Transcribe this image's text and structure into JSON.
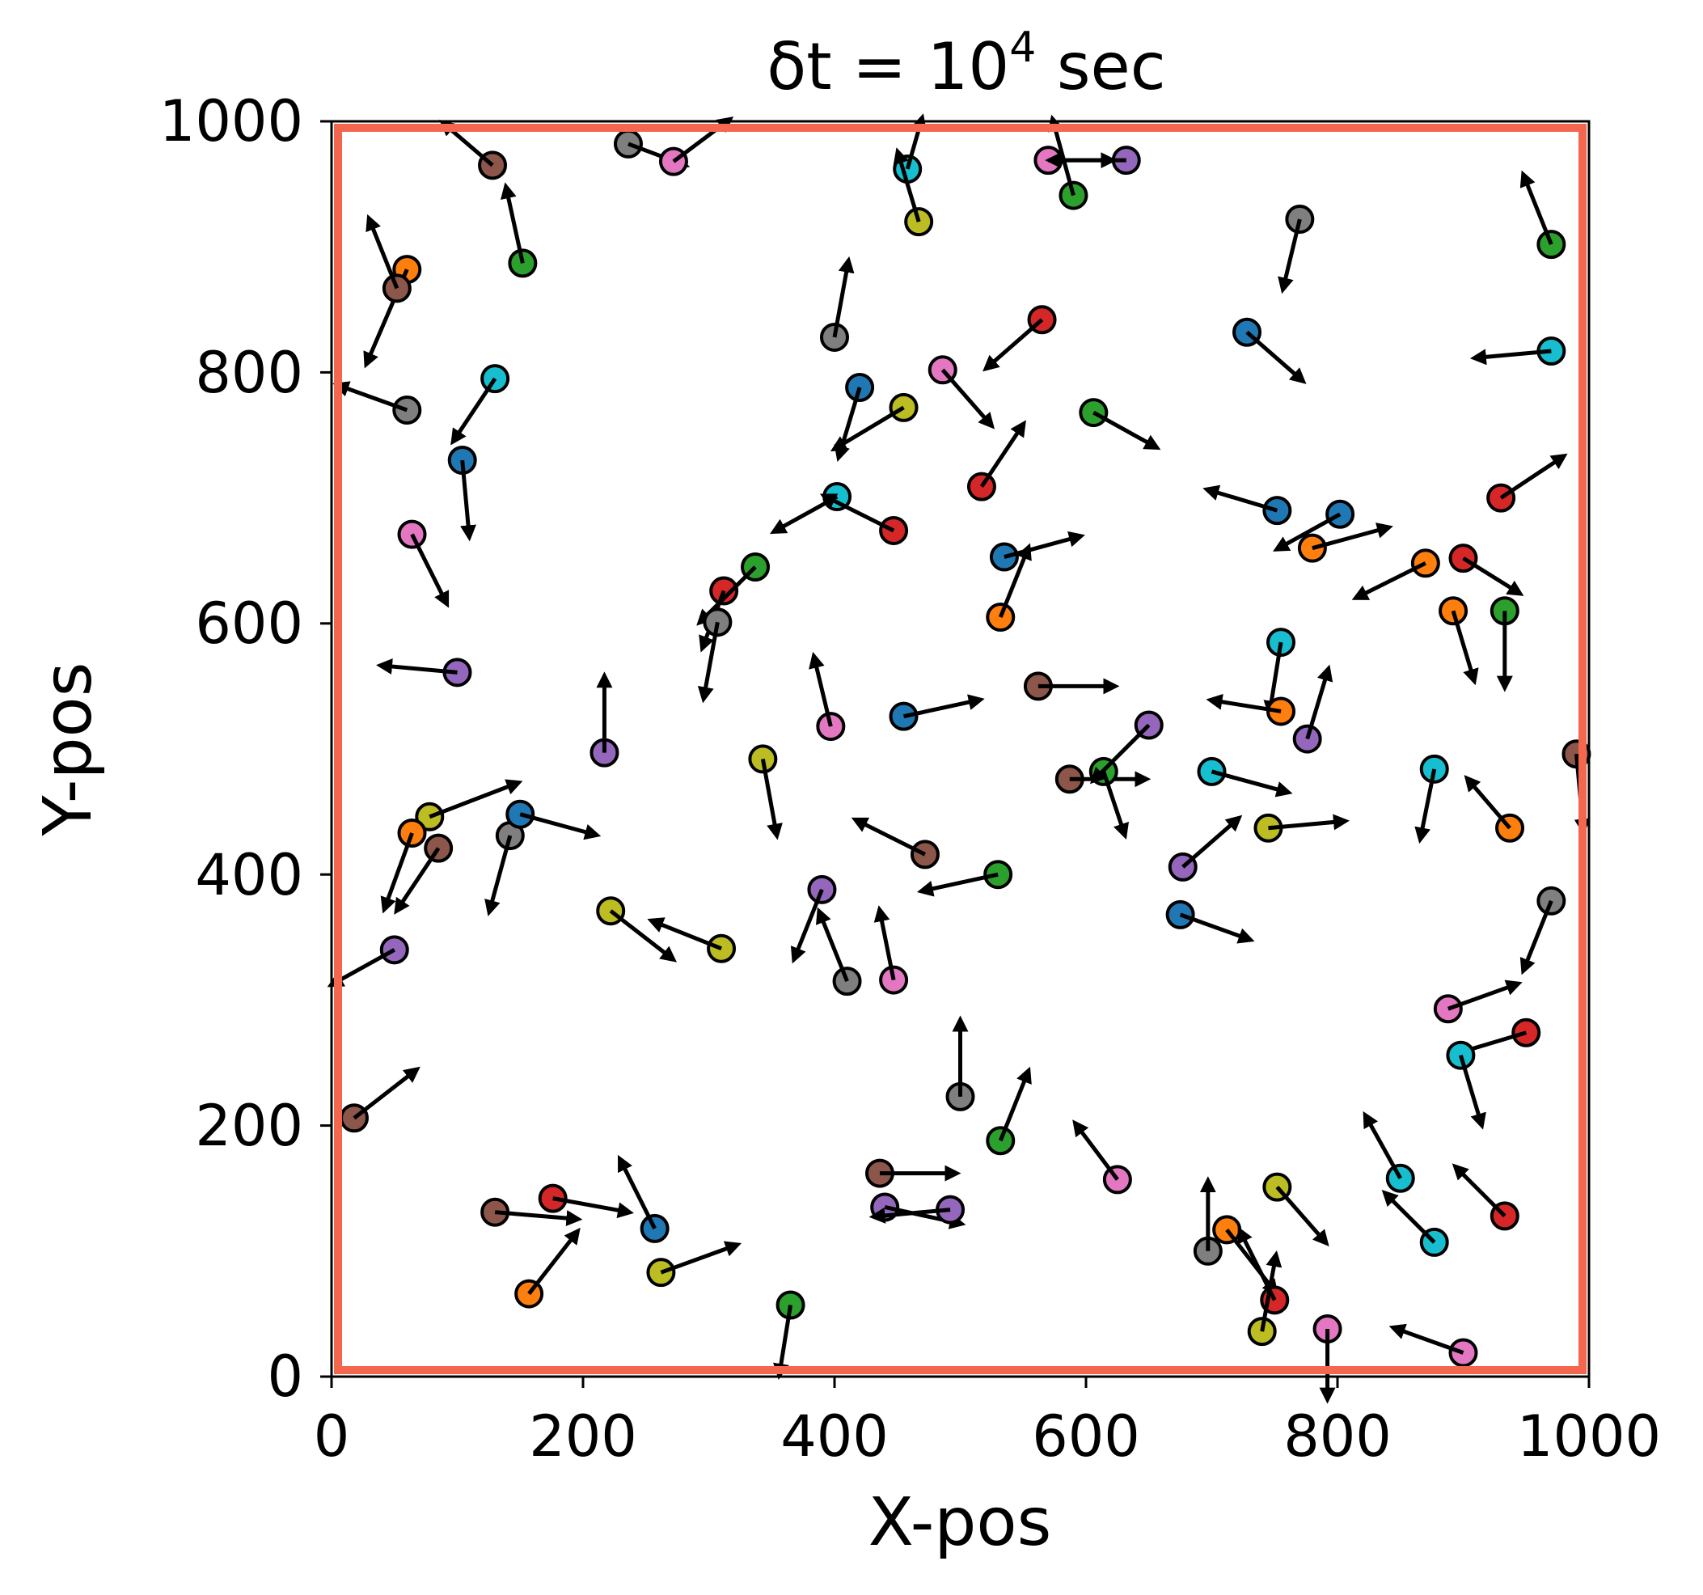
{
  "chart_data": {
    "type": "scatter",
    "title_main": "δt = 10",
    "title_exp": "4",
    "title_unit": " sec",
    "xlabel": "X-pos",
    "ylabel": "Y-pos",
    "xlim": [
      0,
      1000
    ],
    "ylim": [
      0,
      1000
    ],
    "xticks": [
      "0",
      "200",
      "400",
      "600",
      "800",
      "1000"
    ],
    "yticks": [
      "0",
      "200",
      "400",
      "600",
      "800",
      "1000"
    ],
    "grid": false,
    "boundary_color": "#f4674f",
    "arrow_color": "#000000",
    "colors": {
      "blue": "#1f77b4",
      "orange": "#ff7f0e",
      "green": "#2ca02c",
      "red": "#d62728",
      "purple": "#9467bd",
      "brown": "#8c564b",
      "pink": "#e377c2",
      "gray": "#7f7f7f",
      "olive": "#bcbd22",
      "cyan": "#17becf"
    },
    "particles": [
      {
        "x": 128,
        "y": 965,
        "c": "brown",
        "dx": -35,
        "dy": 30
      },
      {
        "x": 236,
        "y": 982,
        "c": "gray",
        "dx": 40,
        "dy": -15
      },
      {
        "x": 272,
        "y": 968,
        "c": "pink",
        "dx": 40,
        "dy": 30
      },
      {
        "x": 152,
        "y": 887,
        "c": "green",
        "dx": -12,
        "dy": 55
      },
      {
        "x": 60,
        "y": 882,
        "c": "orange",
        "dx": -30,
        "dy": -70
      },
      {
        "x": 52,
        "y": 867,
        "c": "brown",
        "dx": -20,
        "dy": 50
      },
      {
        "x": 60,
        "y": 770,
        "c": "gray",
        "dx": -50,
        "dy": 18
      },
      {
        "x": 130,
        "y": 795,
        "c": "cyan",
        "dx": -30,
        "dy": -45
      },
      {
        "x": 104,
        "y": 730,
        "c": "blue",
        "dx": 5,
        "dy": -55
      },
      {
        "x": 64,
        "y": 671,
        "c": "pink",
        "dx": 25,
        "dy": -50
      },
      {
        "x": 100,
        "y": 561,
        "c": "purple",
        "dx": -55,
        "dy": 5
      },
      {
        "x": 217,
        "y": 497,
        "c": "purple",
        "dx": 0,
        "dy": 55
      },
      {
        "x": 78,
        "y": 446,
        "c": "olive",
        "dx": 65,
        "dy": 25
      },
      {
        "x": 64,
        "y": 433,
        "c": "orange",
        "dx": -20,
        "dy": -55
      },
      {
        "x": 85,
        "y": 421,
        "c": "brown",
        "dx": -30,
        "dy": -45
      },
      {
        "x": 142,
        "y": 431,
        "c": "gray",
        "dx": -15,
        "dy": -55
      },
      {
        "x": 150,
        "y": 448,
        "c": "blue",
        "dx": 55,
        "dy": -15
      },
      {
        "x": 50,
        "y": 340,
        "c": "purple",
        "dx": -45,
        "dy": -25
      },
      {
        "x": 18,
        "y": 206,
        "c": "brown",
        "dx": 45,
        "dy": 35
      },
      {
        "x": 222,
        "y": 371,
        "c": "olive",
        "dx": 45,
        "dy": -35
      },
      {
        "x": 310,
        "y": 341,
        "c": "olive",
        "dx": -50,
        "dy": 20
      },
      {
        "x": 130,
        "y": 131,
        "c": "brown",
        "dx": 60,
        "dy": -5
      },
      {
        "x": 176,
        "y": 142,
        "c": "red",
        "dx": 55,
        "dy": -10
      },
      {
        "x": 257,
        "y": 118,
        "c": "blue",
        "dx": -25,
        "dy": 50
      },
      {
        "x": 157,
        "y": 66,
        "c": "orange",
        "dx": 35,
        "dy": 45
      },
      {
        "x": 262,
        "y": 83,
        "c": "olive",
        "dx": 55,
        "dy": 20
      },
      {
        "x": 365,
        "y": 57,
        "c": "green",
        "dx": -8,
        "dy": -50
      },
      {
        "x": 312,
        "y": 626,
        "c": "red",
        "dx": -15,
        "dy": -40
      },
      {
        "x": 337,
        "y": 645,
        "c": "green",
        "dx": -40,
        "dy": -40
      },
      {
        "x": 307,
        "y": 601,
        "c": "gray",
        "dx": -10,
        "dy": -55
      },
      {
        "x": 343,
        "y": 492,
        "c": "olive",
        "dx": 10,
        "dy": -55
      },
      {
        "x": 400,
        "y": 828,
        "c": "gray",
        "dx": 10,
        "dy": 55
      },
      {
        "x": 420,
        "y": 788,
        "c": "blue",
        "dx": -15,
        "dy": -50
      },
      {
        "x": 455,
        "y": 772,
        "c": "olive",
        "dx": -50,
        "dy": -30
      },
      {
        "x": 402,
        "y": 701,
        "c": "cyan",
        "dx": -45,
        "dy": -25
      },
      {
        "x": 447,
        "y": 674,
        "c": "red",
        "dx": -50,
        "dy": 25
      },
      {
        "x": 458,
        "y": 962,
        "c": "cyan",
        "dx": 10,
        "dy": 35
      },
      {
        "x": 467,
        "y": 920,
        "c": "olive",
        "dx": -15,
        "dy": 50
      },
      {
        "x": 486,
        "y": 802,
        "c": "pink",
        "dx": 35,
        "dy": -40
      },
      {
        "x": 565,
        "y": 842,
        "c": "red",
        "dx": -40,
        "dy": -35
      },
      {
        "x": 517,
        "y": 709,
        "c": "red",
        "dx": 30,
        "dy": 45
      },
      {
        "x": 535,
        "y": 653,
        "c": "blue",
        "dx": 55,
        "dy": 15
      },
      {
        "x": 532,
        "y": 605,
        "c": "orange",
        "dx": 20,
        "dy": 50
      },
      {
        "x": 397,
        "y": 518,
        "c": "pink",
        "dx": -12,
        "dy": 50
      },
      {
        "x": 455,
        "y": 526,
        "c": "blue",
        "dx": 55,
        "dy": 12
      },
      {
        "x": 390,
        "y": 388,
        "c": "purple",
        "dx": -20,
        "dy": -50
      },
      {
        "x": 410,
        "y": 315,
        "c": "gray",
        "dx": -20,
        "dy": 50
      },
      {
        "x": 447,
        "y": 316,
        "c": "pink",
        "dx": -10,
        "dy": 50
      },
      {
        "x": 472,
        "y": 416,
        "c": "brown",
        "dx": -50,
        "dy": 25
      },
      {
        "x": 530,
        "y": 400,
        "c": "green",
        "dx": -55,
        "dy": -12
      },
      {
        "x": 500,
        "y": 223,
        "c": "gray",
        "dx": 0,
        "dy": 55
      },
      {
        "x": 532,
        "y": 188,
        "c": "green",
        "dx": 20,
        "dy": 50
      },
      {
        "x": 436,
        "y": 162,
        "c": "brown",
        "dx": 55,
        "dy": 0
      },
      {
        "x": 440,
        "y": 135,
        "c": "purple",
        "dx": 55,
        "dy": -12
      },
      {
        "x": 492,
        "y": 133,
        "c": "purple",
        "dx": -55,
        "dy": -5
      },
      {
        "x": 570,
        "y": 969,
        "c": "pink",
        "dx": 45,
        "dy": 0
      },
      {
        "x": 590,
        "y": 941,
        "c": "green",
        "dx": -15,
        "dy": 55
      },
      {
        "x": 632,
        "y": 969,
        "c": "purple",
        "dx": -55,
        "dy": 0
      },
      {
        "x": 606,
        "y": 768,
        "c": "green",
        "dx": 45,
        "dy": -25
      },
      {
        "x": 562,
        "y": 550,
        "c": "brown",
        "dx": 55,
        "dy": 0
      },
      {
        "x": 587,
        "y": 476,
        "c": "brown",
        "dx": 55,
        "dy": 0
      },
      {
        "x": 614,
        "y": 482,
        "c": "green",
        "dx": 15,
        "dy": -45
      },
      {
        "x": 650,
        "y": 519,
        "c": "purple",
        "dx": -40,
        "dy": -40
      },
      {
        "x": 625,
        "y": 157,
        "c": "pink",
        "dx": -30,
        "dy": 40
      },
      {
        "x": 770,
        "y": 922,
        "c": "gray",
        "dx": -12,
        "dy": -50
      },
      {
        "x": 728,
        "y": 832,
        "c": "blue",
        "dx": 40,
        "dy": -35
      },
      {
        "x": 752,
        "y": 690,
        "c": "blue",
        "dx": -50,
        "dy": 15
      },
      {
        "x": 802,
        "y": 687,
        "c": "blue",
        "dx": -45,
        "dy": -25
      },
      {
        "x": 780,
        "y": 660,
        "c": "orange",
        "dx": 55,
        "dy": 15
      },
      {
        "x": 755,
        "y": 585,
        "c": "cyan",
        "dx": -8,
        "dy": -50
      },
      {
        "x": 755,
        "y": 530,
        "c": "orange",
        "dx": -50,
        "dy": 8
      },
      {
        "x": 776,
        "y": 508,
        "c": "purple",
        "dx": 15,
        "dy": 50
      },
      {
        "x": 700,
        "y": 482,
        "c": "cyan",
        "dx": 55,
        "dy": -15
      },
      {
        "x": 745,
        "y": 437,
        "c": "olive",
        "dx": 55,
        "dy": 5
      },
      {
        "x": 677,
        "y": 406,
        "c": "purple",
        "dx": 40,
        "dy": 35
      },
      {
        "x": 675,
        "y": 368,
        "c": "blue",
        "dx": 50,
        "dy": -18
      },
      {
        "x": 752,
        "y": 151,
        "c": "olive",
        "dx": 35,
        "dy": -40
      },
      {
        "x": 697,
        "y": 100,
        "c": "gray",
        "dx": 0,
        "dy": 50
      },
      {
        "x": 712,
        "y": 117,
        "c": "orange",
        "dx": 35,
        "dy": -45
      },
      {
        "x": 750,
        "y": 61,
        "c": "red",
        "dx": -25,
        "dy": 50
      },
      {
        "x": 740,
        "y": 36,
        "c": "olive",
        "dx": 10,
        "dy": 55
      },
      {
        "x": 792,
        "y": 38,
        "c": "pink",
        "dx": 0,
        "dy": -50
      },
      {
        "x": 900,
        "y": 19,
        "c": "pink",
        "dx": -50,
        "dy": 18
      },
      {
        "x": 877,
        "y": 107,
        "c": "cyan",
        "dx": -35,
        "dy": 35
      },
      {
        "x": 850,
        "y": 158,
        "c": "cyan",
        "dx": -25,
        "dy": 45
      },
      {
        "x": 933,
        "y": 128,
        "c": "red",
        "dx": -35,
        "dy": 35
      },
      {
        "x": 950,
        "y": 274,
        "c": "red",
        "dx": -50,
        "dy": -15
      },
      {
        "x": 898,
        "y": 256,
        "c": "cyan",
        "dx": 15,
        "dy": -50
      },
      {
        "x": 888,
        "y": 293,
        "c": "pink",
        "dx": 50,
        "dy": 18
      },
      {
        "x": 970,
        "y": 379,
        "c": "gray",
        "dx": -20,
        "dy": -50
      },
      {
        "x": 937,
        "y": 437,
        "c": "orange",
        "dx": -30,
        "dy": 35
      },
      {
        "x": 877,
        "y": 484,
        "c": "cyan",
        "dx": -10,
        "dy": -50
      },
      {
        "x": 990,
        "y": 496,
        "c": "brown",
        "dx": 5,
        "dy": -55
      },
      {
        "x": 933,
        "y": 610,
        "c": "green",
        "dx": 0,
        "dy": -55
      },
      {
        "x": 892,
        "y": 610,
        "c": "orange",
        "dx": 15,
        "dy": -50
      },
      {
        "x": 870,
        "y": 648,
        "c": "orange",
        "dx": -50,
        "dy": -25
      },
      {
        "x": 900,
        "y": 652,
        "c": "red",
        "dx": 40,
        "dy": -25
      },
      {
        "x": 930,
        "y": 700,
        "c": "red",
        "dx": 45,
        "dy": 30
      },
      {
        "x": 970,
        "y": 817,
        "c": "cyan",
        "dx": -55,
        "dy": -5
      },
      {
        "x": 970,
        "y": 902,
        "c": "green",
        "dx": -20,
        "dy": 50
      }
    ]
  }
}
